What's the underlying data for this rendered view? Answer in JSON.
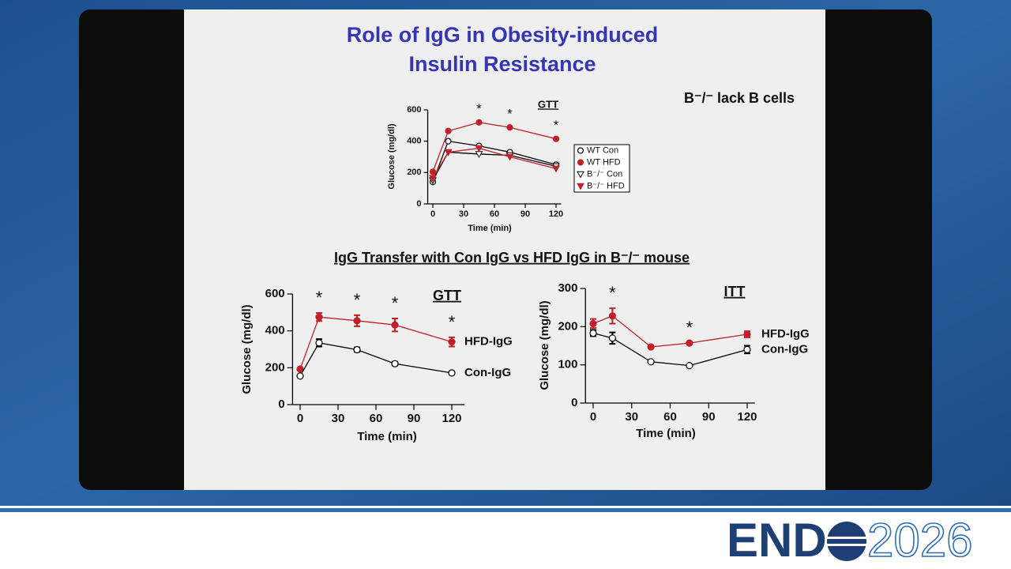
{
  "title": [
    "Role of IgG in Obesity-induced",
    "Insulin Resistance"
  ],
  "note": "B⁻/⁻ lack B cells",
  "section_title": "IgG Transfer with Con IgG vs HFD IgG in B⁻/⁻ mouse",
  "logo": {
    "left": "END",
    "right": "2026"
  },
  "chart_data": [
    {
      "type": "line",
      "title": "GTT",
      "x_label": "Time (min)",
      "y_label": "Glucose (mg/dl)",
      "x": [
        0,
        15,
        45,
        75,
        120
      ],
      "xlim": [
        -5,
        125
      ],
      "xticks": [
        0,
        30,
        60,
        90,
        120
      ],
      "ylim": [
        0,
        600
      ],
      "yticks": [
        0,
        200,
        400,
        600
      ],
      "legend": "box",
      "series": [
        {
          "name": "WT Con",
          "color": "#000000",
          "marker": "circle",
          "filled": false,
          "values": [
            140,
            400,
            370,
            330,
            250
          ]
        },
        {
          "name": "WT HFD",
          "color": "#c0202a",
          "marker": "circle",
          "filled": true,
          "values": [
            205,
            465,
            520,
            488,
            415
          ]
        },
        {
          "name": "B⁻/⁻ Con",
          "color": "#000000",
          "marker": "triangle",
          "filled": false,
          "values": [
            150,
            330,
            318,
            310,
            240
          ]
        },
        {
          "name": "B⁻/⁻ HFD",
          "color": "#c0202a",
          "marker": "triangle",
          "filled": true,
          "values": [
            165,
            330,
            355,
            300,
            225
          ]
        }
      ],
      "annotations": [
        {
          "x": 45,
          "text": "*"
        },
        {
          "x": 75,
          "text": "*"
        },
        {
          "x": 120,
          "text": "*"
        }
      ]
    },
    {
      "type": "line",
      "title": "GTT",
      "x_label": "Time (min)",
      "y_label": "Glucose (mg/dl)",
      "x": [
        0,
        15,
        45,
        75,
        120
      ],
      "xlim": [
        -6,
        130
      ],
      "xticks": [
        0,
        30,
        60,
        90,
        120
      ],
      "ylim": [
        0,
        600
      ],
      "yticks": [
        0,
        200,
        400,
        600
      ],
      "legend": "end",
      "series": [
        {
          "name": "HFD-IgG",
          "color": "#c0202a",
          "marker": "circle",
          "filled": true,
          "values": [
            193,
            475,
            455,
            432,
            340
          ],
          "errors": [
            0,
            22,
            30,
            35,
            25
          ]
        },
        {
          "name": "Con-IgG",
          "color": "#000000",
          "marker": "circle",
          "filled": false,
          "values": [
            155,
            335,
            298,
            222,
            172
          ],
          "errors": [
            0,
            20,
            12,
            10,
            8
          ]
        }
      ],
      "annotations": [
        {
          "x": 15,
          "text": "*"
        },
        {
          "x": 45,
          "text": "*"
        },
        {
          "x": 75,
          "text": "*"
        },
        {
          "x": 120,
          "text": "*"
        }
      ]
    },
    {
      "type": "line",
      "title": "ITT",
      "x_label": "Time (min)",
      "y_label": "Glucose (mg/dl)",
      "x": [
        0,
        15,
        45,
        75,
        120
      ],
      "xlim": [
        -6,
        126
      ],
      "xticks": [
        0,
        30,
        60,
        90,
        120
      ],
      "ylim": [
        0,
        300
      ],
      "yticks": [
        0,
        100,
        200,
        300
      ],
      "legend": "end",
      "series": [
        {
          "name": "HFD-IgG",
          "color": "#c0202a",
          "marker": "circle",
          "filled": true,
          "values": [
            208,
            228,
            147,
            157,
            180
          ],
          "errors": [
            12,
            20,
            0,
            0,
            8
          ]
        },
        {
          "name": "Con-IgG",
          "color": "#000000",
          "marker": "circle",
          "filled": false,
          "values": [
            183,
            170,
            108,
            98,
            140
          ],
          "errors": [
            8,
            15,
            0,
            0,
            10
          ]
        }
      ],
      "annotations": [
        {
          "x": 15,
          "text": "*"
        },
        {
          "x": 75,
          "text": "*"
        }
      ]
    }
  ]
}
